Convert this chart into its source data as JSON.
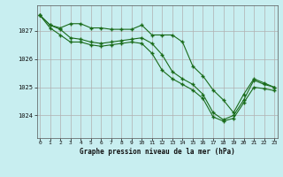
{
  "title": "Graphe pression niveau de la mer (hPa)",
  "background_color": "#c8eef0",
  "grid_color": "#b0b0b0",
  "line_color": "#1a6b1a",
  "xlim": [
    -0.3,
    23.3
  ],
  "ylim": [
    1023.2,
    1027.9
  ],
  "yticks": [
    1024,
    1025,
    1026,
    1027
  ],
  "xticks": [
    0,
    1,
    2,
    3,
    4,
    5,
    6,
    7,
    8,
    9,
    10,
    11,
    12,
    13,
    14,
    15,
    16,
    17,
    18,
    19,
    20,
    21,
    22,
    23
  ],
  "series1": [
    1027.55,
    1027.2,
    1027.1,
    1027.25,
    1027.25,
    1027.1,
    1027.1,
    1027.05,
    1027.05,
    1027.05,
    1027.2,
    1026.85,
    1026.85,
    1026.85,
    1026.6,
    1025.75,
    1025.4,
    1024.9,
    1024.55,
    1024.1,
    1024.75,
    1025.3,
    1025.15,
    1025.0
  ],
  "series2": [
    1027.55,
    1027.2,
    1027.05,
    1026.75,
    1026.7,
    1026.6,
    1026.55,
    1026.6,
    1026.65,
    1026.7,
    1026.75,
    1026.55,
    1026.15,
    1025.55,
    1025.3,
    1025.1,
    1024.75,
    1024.1,
    1023.85,
    1024.0,
    1024.55,
    1025.25,
    1025.1,
    1025.0
  ],
  "series3": [
    1027.55,
    1027.1,
    1026.85,
    1026.6,
    1026.6,
    1026.5,
    1026.45,
    1026.5,
    1026.55,
    1026.6,
    1026.55,
    1026.2,
    1025.6,
    1025.3,
    1025.1,
    1024.9,
    1024.6,
    1023.95,
    1023.8,
    1023.9,
    1024.45,
    1025.0,
    1024.95,
    1024.88
  ]
}
